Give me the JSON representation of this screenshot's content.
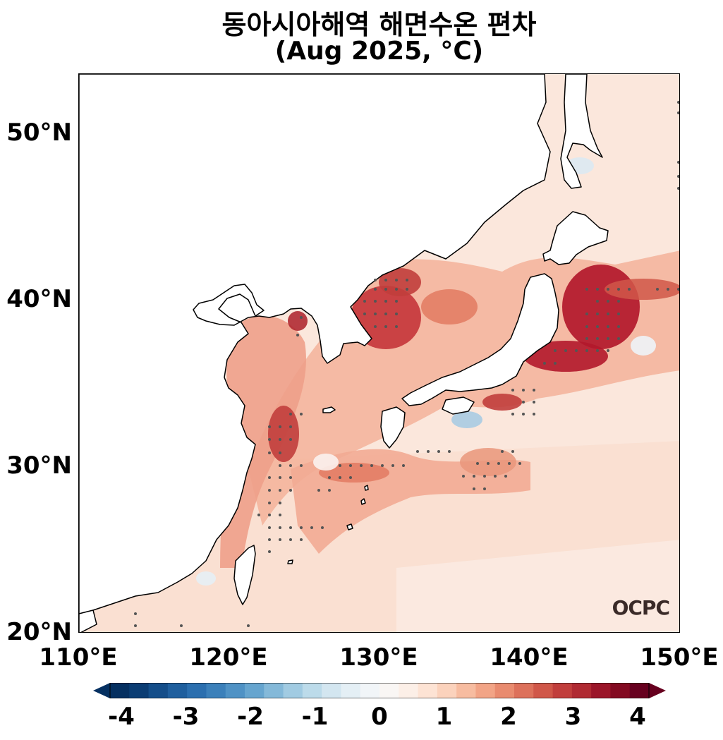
{
  "title": {
    "line1": "동아시아해역 해면수온 편차",
    "line2": "(Aug 2025, °C)"
  },
  "map": {
    "lat_labels": [
      "50°N",
      "40°N",
      "30°N",
      "20°N"
    ],
    "lon_labels": [
      "110°E",
      "120°E",
      "130°E",
      "140°E",
      "150°E"
    ],
    "watermark": "OCPC",
    "extent": {
      "lon": [
        110,
        150
      ],
      "lat": [
        20,
        53.5
      ]
    }
  },
  "colorbar": {
    "ticks": [
      "-4",
      "-3",
      "-2",
      "-1",
      "0",
      "1",
      "2",
      "3",
      "4"
    ],
    "min": -4,
    "max": 4,
    "colors": [
      "#053061",
      "#0b3d74",
      "#144e8a",
      "#1f5f9e",
      "#2b6faf",
      "#3b80ba",
      "#4f92c5",
      "#66a5cf",
      "#84b9d9",
      "#a1cbe2",
      "#bcdbea",
      "#d3e6f0",
      "#e4eff5",
      "#f1f5f8",
      "#f9f6f4",
      "#fcefe7",
      "#fde3d4",
      "#fbd2bc",
      "#f7bca0",
      "#f2a486",
      "#e98b6f",
      "#dd715b",
      "#d05749",
      "#c13e3c",
      "#b02a32",
      "#9b1529",
      "#830a21",
      "#67001f"
    ]
  },
  "colors": {
    "land": "#ffffff",
    "background_anomaly": "#fbe9e0",
    "warm_strong": "#b2182b",
    "warm_mid": "#e5826a",
    "warm_light": "#f7c4ac",
    "cool": "#a9cbe2",
    "stipple": "#555555"
  }
}
